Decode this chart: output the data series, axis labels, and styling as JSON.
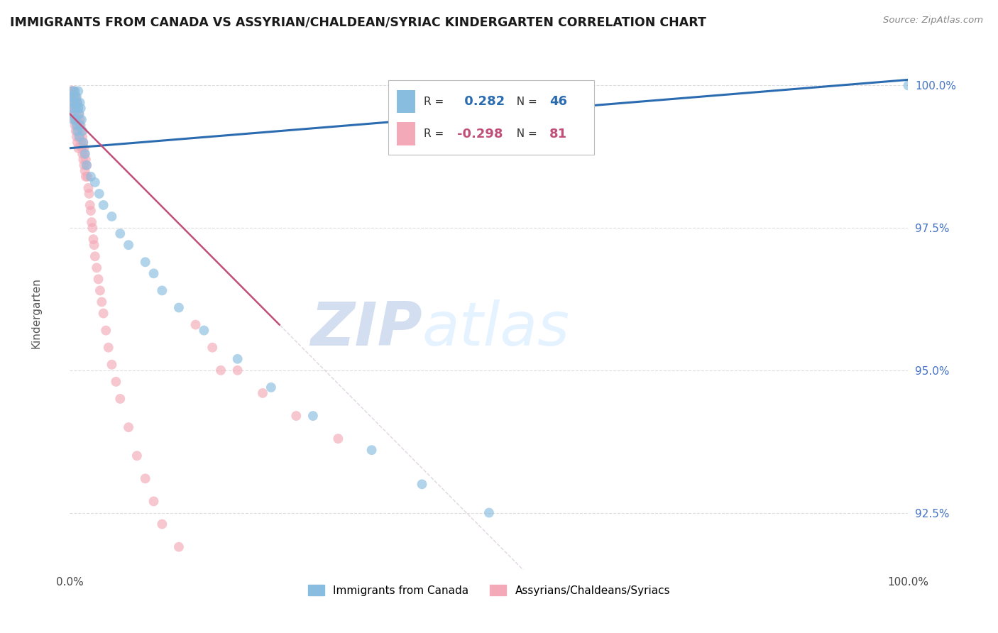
{
  "title": "IMMIGRANTS FROM CANADA VS ASSYRIAN/CHALDEAN/SYRIAC KINDERGARTEN CORRELATION CHART",
  "source": "Source: ZipAtlas.com",
  "ylabel": "Kindergarten",
  "ytick_labels": [
    "100.0%",
    "97.5%",
    "95.0%",
    "92.5%"
  ],
  "ytick_values": [
    1.0,
    0.975,
    0.95,
    0.925
  ],
  "legend_label1": "Immigrants from Canada",
  "legend_label2": "Assyrians/Chaldeans/Syriacs",
  "R_blue": 0.282,
  "N_blue": 46,
  "R_pink": -0.298,
  "N_pink": 81,
  "color_blue": "#89bde0",
  "color_pink": "#f4a9b8",
  "color_blue_line": "#2b6cb0",
  "color_pink_line": "#c0507a",
  "color_pink_dash": "#ccbbcc",
  "watermark_zip": "ZIP",
  "watermark_atlas": "atlas",
  "xlim": [
    0.0,
    1.0
  ],
  "ylim": [
    0.915,
    1.005
  ],
  "background_color": "#ffffff",
  "grid_color": "#dddddd",
  "blue_x": [
    0.002,
    0.003,
    0.003,
    0.004,
    0.004,
    0.005,
    0.005,
    0.006,
    0.006,
    0.007,
    0.007,
    0.008,
    0.008,
    0.009,
    0.009,
    0.01,
    0.01,
    0.011,
    0.011,
    0.012,
    0.012,
    0.013,
    0.014,
    0.015,
    0.016,
    0.018,
    0.02,
    0.025,
    0.03,
    0.035,
    0.04,
    0.05,
    0.06,
    0.07,
    0.09,
    0.1,
    0.11,
    0.13,
    0.16,
    0.2,
    0.24,
    0.29,
    0.36,
    0.42,
    0.5,
    1.0
  ],
  "blue_y": [
    0.998,
    0.996,
    0.999,
    0.997,
    0.994,
    0.998,
    0.995,
    0.997,
    0.999,
    0.996,
    0.994,
    0.998,
    0.993,
    0.997,
    0.992,
    0.996,
    0.999,
    0.995,
    0.991,
    0.997,
    0.993,
    0.996,
    0.994,
    0.992,
    0.99,
    0.988,
    0.986,
    0.984,
    0.983,
    0.981,
    0.979,
    0.977,
    0.974,
    0.972,
    0.969,
    0.967,
    0.964,
    0.961,
    0.957,
    0.952,
    0.947,
    0.942,
    0.936,
    0.93,
    0.925,
    1.0
  ],
  "pink_x": [
    0.001,
    0.001,
    0.002,
    0.002,
    0.002,
    0.003,
    0.003,
    0.003,
    0.004,
    0.004,
    0.004,
    0.005,
    0.005,
    0.005,
    0.006,
    0.006,
    0.006,
    0.007,
    0.007,
    0.007,
    0.008,
    0.008,
    0.008,
    0.009,
    0.009,
    0.009,
    0.01,
    0.01,
    0.01,
    0.011,
    0.011,
    0.012,
    0.012,
    0.013,
    0.013,
    0.014,
    0.014,
    0.015,
    0.015,
    0.016,
    0.016,
    0.017,
    0.017,
    0.018,
    0.018,
    0.019,
    0.019,
    0.02,
    0.021,
    0.022,
    0.023,
    0.024,
    0.025,
    0.026,
    0.027,
    0.028,
    0.029,
    0.03,
    0.032,
    0.034,
    0.036,
    0.038,
    0.04,
    0.043,
    0.046,
    0.05,
    0.055,
    0.06,
    0.07,
    0.08,
    0.09,
    0.1,
    0.11,
    0.13,
    0.15,
    0.17,
    0.2,
    0.23,
    0.27,
    0.32,
    0.18
  ],
  "pink_y": [
    0.999,
    0.997,
    0.999,
    0.998,
    0.996,
    0.999,
    0.998,
    0.996,
    0.999,
    0.997,
    0.995,
    0.999,
    0.997,
    0.994,
    0.998,
    0.996,
    0.993,
    0.998,
    0.995,
    0.992,
    0.997,
    0.994,
    0.991,
    0.997,
    0.993,
    0.99,
    0.996,
    0.993,
    0.989,
    0.995,
    0.992,
    0.994,
    0.991,
    0.993,
    0.99,
    0.992,
    0.989,
    0.991,
    0.988,
    0.99,
    0.987,
    0.989,
    0.986,
    0.988,
    0.985,
    0.987,
    0.984,
    0.986,
    0.984,
    0.982,
    0.981,
    0.979,
    0.978,
    0.976,
    0.975,
    0.973,
    0.972,
    0.97,
    0.968,
    0.966,
    0.964,
    0.962,
    0.96,
    0.957,
    0.954,
    0.951,
    0.948,
    0.945,
    0.94,
    0.935,
    0.931,
    0.927,
    0.923,
    0.919,
    0.958,
    0.954,
    0.95,
    0.946,
    0.942,
    0.938,
    0.95
  ]
}
